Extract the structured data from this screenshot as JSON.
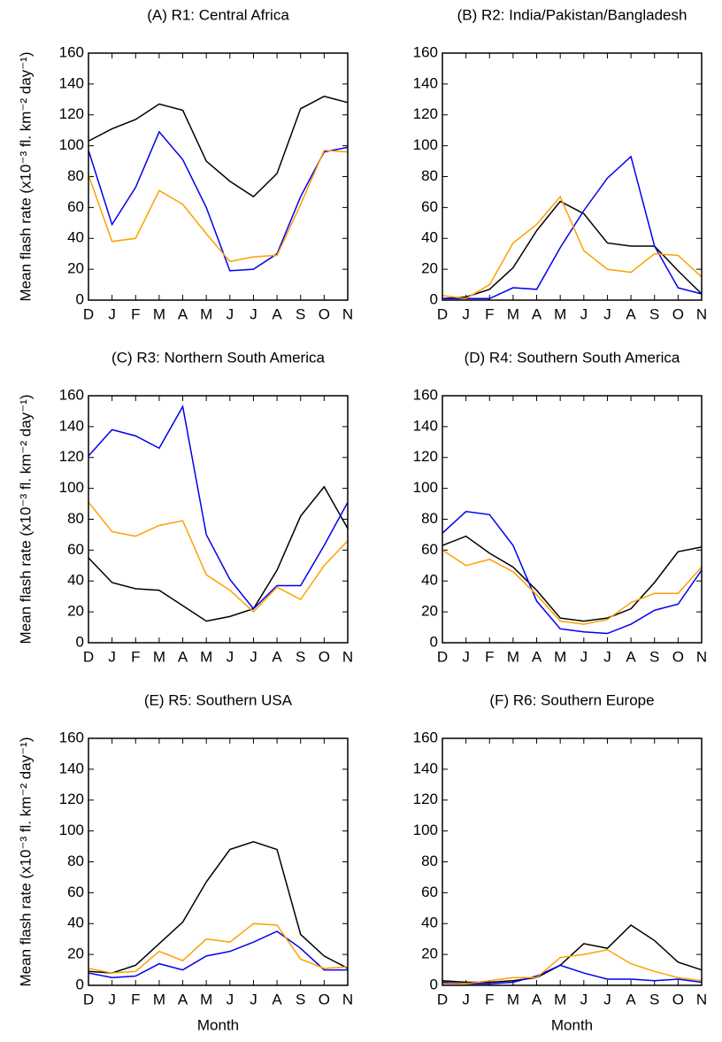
{
  "chart_data": [
    {
      "type": "line",
      "title": "(A)  R1: Central Africa",
      "ylabel": "Mean flash rate (x10⁻³ fl. km⁻² day⁻¹)",
      "categories": [
        "D",
        "J",
        "F",
        "M",
        "A",
        "M",
        "J",
        "J",
        "A",
        "S",
        "O",
        "N"
      ],
      "series": [
        {
          "color": "#000000",
          "values": [
            103,
            111,
            117,
            127,
            123,
            90,
            77,
            67,
            82,
            124,
            132,
            128
          ]
        },
        {
          "color": "#0000ee",
          "values": [
            97,
            49,
            73,
            109,
            91,
            60,
            19,
            20,
            30,
            67,
            96,
            99
          ]
        },
        {
          "color": "#ffa000",
          "values": [
            81,
            38,
            40,
            71,
            62,
            43,
            25,
            28,
            29,
            62,
            97,
            96
          ]
        }
      ],
      "ylim": [
        0,
        160
      ],
      "yticks": [
        0,
        20,
        40,
        60,
        80,
        100,
        120,
        140,
        160
      ]
    },
    {
      "type": "line",
      "title": "(B)  R2: India/Pakistan/Bangladesh",
      "categories": [
        "D",
        "J",
        "F",
        "M",
        "A",
        "M",
        "J",
        "J",
        "A",
        "S",
        "O",
        "N"
      ],
      "series": [
        {
          "color": "#000000",
          "values": [
            1,
            2,
            7,
            21,
            45,
            64,
            56,
            37,
            35,
            35,
            19,
            4
          ]
        },
        {
          "color": "#0000ee",
          "values": [
            1,
            1,
            1,
            8,
            7,
            34,
            58,
            79,
            93,
            35,
            8,
            4
          ]
        },
        {
          "color": "#ffa000",
          "values": [
            3,
            1,
            10,
            37,
            49,
            67,
            32,
            20,
            18,
            30,
            29,
            15
          ]
        }
      ],
      "ylim": [
        0,
        160
      ],
      "yticks": [
        0,
        20,
        40,
        60,
        80,
        100,
        120,
        140,
        160
      ]
    },
    {
      "type": "line",
      "title": "(C)  R3: Northern South America",
      "ylabel": "Mean flash rate (x10⁻³ fl. km⁻² day⁻¹)",
      "categories": [
        "D",
        "J",
        "F",
        "M",
        "A",
        "M",
        "J",
        "J",
        "A",
        "S",
        "O",
        "N"
      ],
      "series": [
        {
          "color": "#000000",
          "values": [
            55,
            39,
            35,
            34,
            24,
            14,
            17,
            22,
            47,
            82,
            101,
            74
          ]
        },
        {
          "color": "#0000ee",
          "values": [
            121,
            138,
            134,
            126,
            153,
            70,
            41,
            22,
            37,
            37,
            63,
            91
          ]
        },
        {
          "color": "#ffa000",
          "values": [
            91,
            72,
            69,
            76,
            79,
            44,
            34,
            20,
            36,
            28,
            50,
            66
          ]
        }
      ],
      "ylim": [
        0,
        160
      ],
      "yticks": [
        0,
        20,
        40,
        60,
        80,
        100,
        120,
        140,
        160
      ]
    },
    {
      "type": "line",
      "title": "(D)  R4: Southern South America",
      "categories": [
        "D",
        "J",
        "F",
        "M",
        "A",
        "M",
        "J",
        "J",
        "A",
        "S",
        "O",
        "N"
      ],
      "series": [
        {
          "color": "#000000",
          "values": [
            63,
            69,
            58,
            49,
            34,
            16,
            14,
            16,
            22,
            39,
            59,
            62
          ]
        },
        {
          "color": "#0000ee",
          "values": [
            71,
            85,
            83,
            63,
            27,
            9,
            7,
            6,
            12,
            21,
            25,
            47
          ]
        },
        {
          "color": "#ffa000",
          "values": [
            60,
            50,
            54,
            46,
            31,
            14,
            12,
            15,
            26,
            32,
            32,
            49
          ]
        }
      ],
      "ylim": [
        0,
        160
      ],
      "yticks": [
        0,
        20,
        40,
        60,
        80,
        100,
        120,
        140,
        160
      ]
    },
    {
      "type": "line",
      "title": "(E)  R5: Southern USA",
      "ylabel": "Mean flash rate (x10⁻³ fl. km⁻² day⁻¹)",
      "xlabel": "Month",
      "categories": [
        "D",
        "J",
        "F",
        "M",
        "A",
        "M",
        "J",
        "J",
        "A",
        "S",
        "O",
        "N"
      ],
      "series": [
        {
          "color": "#000000",
          "values": [
            9,
            8,
            13,
            27,
            41,
            67,
            88,
            93,
            88,
            33,
            19,
            11
          ]
        },
        {
          "color": "#0000ee",
          "values": [
            8,
            5,
            6,
            14,
            10,
            19,
            22,
            28,
            35,
            24,
            10,
            10
          ]
        },
        {
          "color": "#ffa000",
          "values": [
            11,
            8,
            9,
            22,
            16,
            30,
            28,
            40,
            39,
            17,
            11,
            12
          ]
        }
      ],
      "ylim": [
        0,
        160
      ],
      "yticks": [
        0,
        20,
        40,
        60,
        80,
        100,
        120,
        140,
        160
      ]
    },
    {
      "type": "line",
      "title": "(F)  R6: Southern Europe",
      "xlabel": "Month",
      "categories": [
        "D",
        "J",
        "F",
        "M",
        "A",
        "M",
        "J",
        "J",
        "A",
        "S",
        "O",
        "N"
      ],
      "series": [
        {
          "color": "#000000",
          "values": [
            3,
            2,
            2,
            3,
            5,
            13,
            27,
            24,
            39,
            29,
            15,
            10
          ]
        },
        {
          "color": "#0000ee",
          "values": [
            2,
            1,
            1,
            2,
            6,
            13,
            8,
            4,
            4,
            3,
            4,
            2
          ]
        },
        {
          "color": "#ffa000",
          "values": [
            1,
            1,
            3,
            5,
            5,
            18,
            20,
            23,
            14,
            9,
            5,
            3
          ]
        }
      ],
      "ylim": [
        0,
        160
      ],
      "yticks": [
        0,
        20,
        40,
        60,
        80,
        100,
        120,
        140,
        160
      ]
    }
  ]
}
